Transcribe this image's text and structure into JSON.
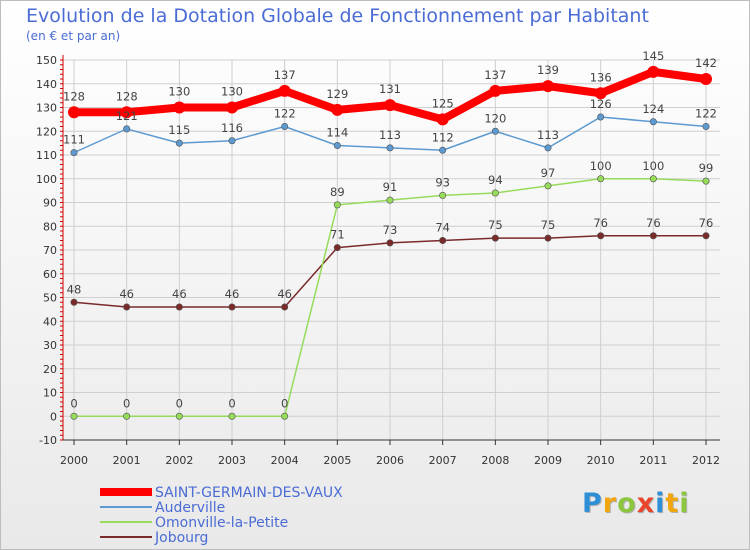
{
  "chart_data": {
    "type": "line",
    "title": "Evolution de la Dotation Globale de Fonctionnement par Habitant",
    "subtitle": "(en € et par an)",
    "xlabel": "",
    "ylabel": "",
    "ylim": [
      -10,
      150
    ],
    "yticks": [
      -10,
      0,
      10,
      20,
      30,
      40,
      50,
      60,
      70,
      80,
      90,
      100,
      110,
      120,
      130,
      140,
      150
    ],
    "grid": true,
    "legend_position": "bottom-left",
    "x": [
      "2000",
      "2001",
      "2002",
      "2003",
      "2004",
      "2005",
      "2006",
      "2007",
      "2008",
      "2009",
      "2010",
      "2011",
      "2012"
    ],
    "series": [
      {
        "name": "SAINT-GERMAIN-DES-VAUX",
        "color": "#ff0000",
        "values": [
          128,
          128,
          130,
          130,
          137,
          129,
          131,
          125,
          137,
          139,
          136,
          145,
          142
        ],
        "labels": [
          "128",
          "128",
          "130",
          "130",
          "137",
          "129",
          "131",
          "125",
          "137",
          "139",
          "136",
          "145",
          "142"
        ]
      },
      {
        "name": "Auderville",
        "color": "#5c9ad1",
        "values": [
          111,
          121,
          115,
          116,
          122,
          114,
          113,
          112,
          120,
          113,
          126,
          124,
          122
        ],
        "labels": [
          "111",
          "121",
          "115",
          "116",
          "122",
          "114",
          "113",
          "112",
          "120",
          "113",
          "126",
          "124",
          "122"
        ]
      },
      {
        "name": "Omonville-la-Petite",
        "color": "#96dc5a",
        "values": [
          0,
          0,
          0,
          0,
          0,
          89,
          91,
          93,
          94,
          97,
          100,
          100,
          99
        ],
        "labels": [
          "0",
          "0",
          "0",
          "0",
          "0",
          "89",
          "91",
          "93",
          "94",
          "97",
          "100",
          "100",
          "99"
        ]
      },
      {
        "name": "Jobourg",
        "color": "#7b2a2a",
        "values": [
          48,
          46,
          46,
          46,
          46,
          71,
          73,
          74,
          75,
          75,
          76,
          76,
          76
        ],
        "labels": [
          "48",
          "46",
          "46",
          "46",
          "46",
          "71",
          "73",
          "74",
          "75",
          "75",
          "76",
          "76",
          "76"
        ]
      }
    ]
  },
  "branding": {
    "logo_letters": [
      "P",
      "r",
      "o",
      "x",
      "i",
      "t",
      "i"
    ],
    "logo_colors": [
      "#2f8fd6",
      "#f2a60d",
      "#8cc63e",
      "#e8452c",
      "#2f8fd6",
      "#f2a60d",
      "#8cc63e"
    ]
  }
}
